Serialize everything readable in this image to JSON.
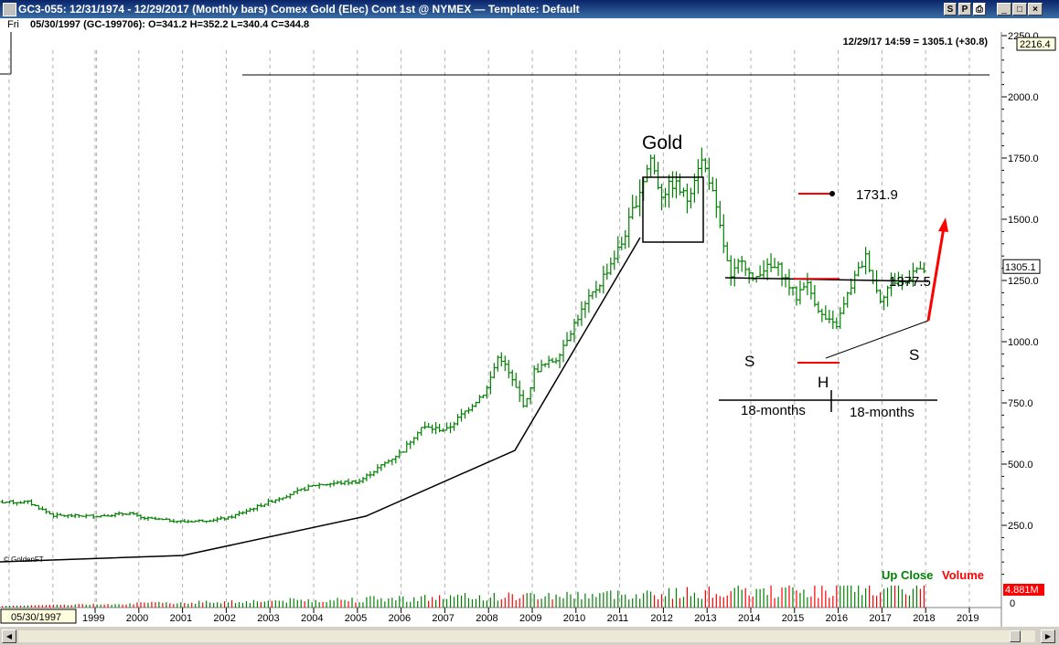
{
  "window": {
    "title": "GC3-055:  12/31/1974 - 12/29/2017  (Monthly bars)   Comex Gold (Elec) Cont 1st @ NYMEX  —  Template: Default",
    "buttons": [
      "S",
      "P"
    ]
  },
  "infobar": {
    "day": "Fri",
    "ohlc": "05/30/1997 (GC-199706):  O=341.2  H=352.2  L=340.4  C=344.8"
  },
  "header_quote": "12/29/17 14:59 = 1305.1 (+30.8)",
  "copyright": "© GoldenFT",
  "colors": {
    "up": "#008000",
    "volume": "#ff0000",
    "target": "#ff0000",
    "price_label_bg": "#ffffe0",
    "plot_bg": "#ffffff",
    "gridline": "#b0b0b0"
  },
  "chart_data": {
    "type": "ohlc",
    "title": "Gold",
    "y_axis": {
      "min": 0,
      "max": 2300,
      "scale": "linear",
      "position": "right",
      "ticks": [
        250,
        500,
        750,
        1000,
        1250,
        1500,
        1750,
        2000,
        2250
      ],
      "tick_labels": [
        "250.0",
        "500.0",
        "750.0",
        "1000.0",
        "1250.0",
        "1500.0",
        "1750.0",
        "2000.0",
        "2250.0"
      ]
    },
    "x_axis": {
      "cursor_date": "05/30/1997",
      "years": [
        "1999",
        "2000",
        "2001",
        "2002",
        "2003",
        "2004",
        "2005",
        "2006",
        "2007",
        "2008",
        "2009",
        "2010",
        "2011",
        "2012",
        "2013",
        "2014",
        "2015",
        "2016",
        "2017",
        "2018",
        "2019"
      ],
      "grid": "vertical dashed at each year"
    },
    "price_labels": [
      "2216.4",
      "1305.1"
    ],
    "legend": {
      "items": [
        "Up Close",
        "Volume"
      ],
      "placement": "bottom-right"
    },
    "volume_label": "4.881M",
    "annotations": {
      "target_label": "1731.9",
      "neckline_label": "1377.5",
      "left_shoulder": "S",
      "head": "H",
      "right_shoulder": "S",
      "span_left": "18-months",
      "span_right": "18-months"
    },
    "anchors": [
      {
        "date": 1997.42,
        "close": 344.8
      },
      {
        "date": 1998.0,
        "close": 290
      },
      {
        "date": 1999.0,
        "close": 288
      },
      {
        "date": 1999.75,
        "close": 300
      },
      {
        "date": 2000.0,
        "close": 280
      },
      {
        "date": 2001.0,
        "close": 265
      },
      {
        "date": 2001.5,
        "close": 270
      },
      {
        "date": 2002.0,
        "close": 280
      },
      {
        "date": 2003.0,
        "close": 350
      },
      {
        "date": 2004.0,
        "close": 415
      },
      {
        "date": 2005.0,
        "close": 430
      },
      {
        "date": 2006.0,
        "close": 555
      },
      {
        "date": 2006.4,
        "close": 650
      },
      {
        "date": 2007.0,
        "close": 640
      },
      {
        "date": 2007.9,
        "close": 800
      },
      {
        "date": 2008.2,
        "close": 950
      },
      {
        "date": 2008.8,
        "close": 730
      },
      {
        "date": 2009.0,
        "close": 880
      },
      {
        "date": 2009.5,
        "close": 930
      },
      {
        "date": 2010.0,
        "close": 1100
      },
      {
        "date": 2010.5,
        "close": 1240
      },
      {
        "date": 2011.0,
        "close": 1400
      },
      {
        "date": 2011.67,
        "close": 1750
      },
      {
        "date": 2011.9,
        "close": 1600
      },
      {
        "date": 2012.2,
        "close": 1650
      },
      {
        "date": 2012.5,
        "close": 1580
      },
      {
        "date": 2012.8,
        "close": 1750
      },
      {
        "date": 2013.0,
        "close": 1670
      },
      {
        "date": 2013.33,
        "close": 1400
      },
      {
        "date": 2013.5,
        "close": 1250
      },
      {
        "date": 2013.75,
        "close": 1350
      },
      {
        "date": 2014.0,
        "close": 1240
      },
      {
        "date": 2014.2,
        "close": 1300
      },
      {
        "date": 2014.6,
        "close": 1300
      },
      {
        "date": 2015.0,
        "close": 1180
      },
      {
        "date": 2015.2,
        "close": 1250
      },
      {
        "date": 2015.6,
        "close": 1100
      },
      {
        "date": 2015.9,
        "close": 1060
      },
      {
        "date": 2016.3,
        "close": 1250
      },
      {
        "date": 2016.6,
        "close": 1350
      },
      {
        "date": 2016.9,
        "close": 1170
      },
      {
        "date": 2017.2,
        "close": 1250
      },
      {
        "date": 2017.5,
        "close": 1240
      },
      {
        "date": 2017.7,
        "close": 1310
      },
      {
        "date": 2017.83,
        "close": 1280
      },
      {
        "date": 2018.0,
        "close": 1305.1
      }
    ]
  }
}
